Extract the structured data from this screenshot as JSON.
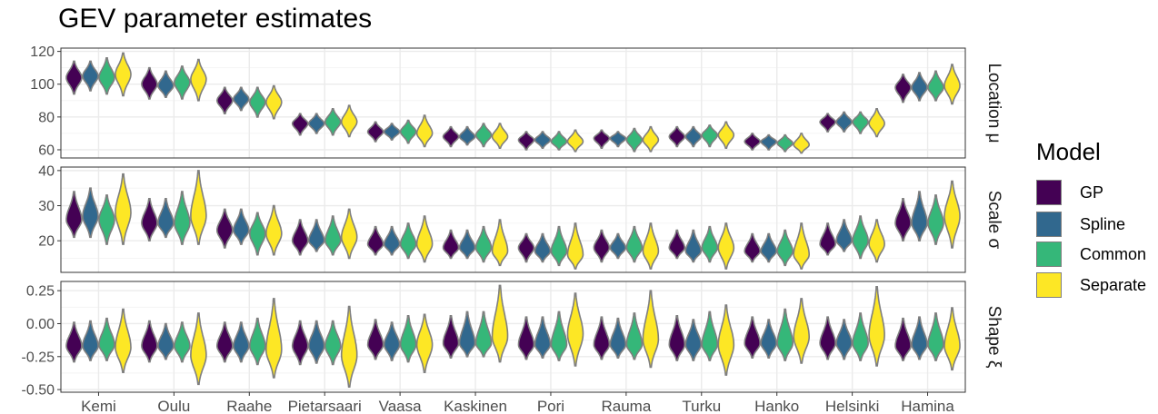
{
  "title": "GEV parameter estimates",
  "legend": {
    "title": "Model",
    "items": [
      {
        "label": "GP",
        "color": "#440154"
      },
      {
        "label": "Spline",
        "color": "#31688E"
      },
      {
        "label": "Common",
        "color": "#35B779"
      },
      {
        "label": "Separate",
        "color": "#FDE725"
      }
    ]
  },
  "chart_data": {
    "type": "violin",
    "categories": [
      "Kemi",
      "Oulu",
      "Raahe",
      "Pietarsaari",
      "Vaasa",
      "Kaskinen",
      "Pori",
      "Rauma",
      "Turku",
      "Hanko",
      "Helsinki",
      "Hamina"
    ],
    "series_names": [
      "GP",
      "Spline",
      "Common",
      "Separate"
    ],
    "panels": [
      {
        "strip_label": "Location μ",
        "ylim": [
          55,
          122
        ],
        "yticks": [
          60,
          80,
          100,
          120
        ],
        "tick_labels": [
          "60",
          "80",
          "100",
          "120"
        ],
        "median": [
          [
            104,
            105,
            104,
            106
          ],
          [
            100,
            99,
            101,
            103
          ],
          [
            90,
            91,
            89,
            89
          ],
          [
            76,
            76,
            77,
            77
          ],
          [
            71,
            71,
            71,
            70
          ],
          [
            68,
            68,
            69,
            68
          ],
          [
            66,
            66,
            65,
            65
          ],
          [
            67,
            67,
            66,
            66
          ],
          [
            68,
            68,
            69,
            69
          ],
          [
            65,
            65,
            64,
            63
          ],
          [
            77,
            77,
            77,
            76
          ],
          [
            98,
            98,
            98,
            99
          ]
        ],
        "min": [
          [
            94,
            96,
            94,
            93
          ],
          [
            91,
            92,
            91,
            90
          ],
          [
            82,
            84,
            80,
            79
          ],
          [
            69,
            70,
            69,
            68
          ],
          [
            65,
            66,
            64,
            62
          ],
          [
            62,
            63,
            62,
            61
          ],
          [
            60,
            61,
            60,
            59
          ],
          [
            61,
            62,
            59,
            59
          ],
          [
            62,
            62,
            62,
            61
          ],
          [
            60,
            60,
            59,
            58
          ],
          [
            71,
            71,
            70,
            68
          ],
          [
            89,
            90,
            90,
            88
          ]
        ],
        "max": [
          [
            114,
            114,
            116,
            119
          ],
          [
            110,
            108,
            111,
            115
          ],
          [
            98,
            98,
            98,
            99
          ],
          [
            82,
            82,
            85,
            87
          ],
          [
            77,
            76,
            78,
            81
          ],
          [
            74,
            74,
            76,
            76
          ],
          [
            71,
            71,
            71,
            72
          ],
          [
            72,
            71,
            73,
            74
          ],
          [
            74,
            74,
            75,
            77
          ],
          [
            70,
            69,
            69,
            70
          ],
          [
            82,
            83,
            83,
            85
          ],
          [
            106,
            107,
            108,
            112
          ]
        ]
      },
      {
        "strip_label": "Scale σ",
        "ylim": [
          11,
          41
        ],
        "yticks": [
          20,
          30,
          40
        ],
        "tick_labels": [
          "20",
          "30",
          "40"
        ],
        "median": [
          [
            26,
            27,
            26,
            28
          ],
          [
            25,
            25,
            25,
            27
          ],
          [
            23,
            23,
            22,
            22
          ],
          [
            20,
            20,
            20,
            21
          ],
          [
            19,
            19,
            19,
            19
          ],
          [
            18,
            18,
            18,
            17
          ],
          [
            18,
            17,
            17,
            16
          ],
          [
            18,
            18,
            18,
            17
          ],
          [
            18,
            17,
            18,
            18
          ],
          [
            17,
            17,
            17,
            16
          ],
          [
            19,
            20,
            20,
            19
          ],
          [
            25,
            25,
            25,
            27
          ]
        ],
        "min": [
          [
            21,
            21,
            19,
            19
          ],
          [
            20,
            21,
            19,
            19
          ],
          [
            18,
            19,
            16,
            16
          ],
          [
            16,
            17,
            16,
            15
          ],
          [
            16,
            16,
            15,
            14
          ],
          [
            15,
            15,
            14,
            13
          ],
          [
            14,
            14,
            13,
            12
          ],
          [
            14,
            15,
            14,
            12
          ],
          [
            15,
            14,
            14,
            12
          ],
          [
            14,
            14,
            13,
            12
          ],
          [
            16,
            17,
            15,
            14
          ],
          [
            20,
            20,
            19,
            18
          ]
        ],
        "max": [
          [
            34,
            35,
            33,
            39
          ],
          [
            32,
            32,
            34,
            40
          ],
          [
            29,
            29,
            28,
            30
          ],
          [
            26,
            26,
            27,
            29
          ],
          [
            24,
            24,
            25,
            27
          ],
          [
            23,
            23,
            24,
            26
          ],
          [
            22,
            22,
            24,
            25
          ],
          [
            23,
            22,
            24,
            25
          ],
          [
            23,
            23,
            24,
            25
          ],
          [
            22,
            22,
            23,
            25
          ],
          [
            25,
            26,
            27,
            26
          ],
          [
            32,
            34,
            33,
            37
          ]
        ]
      },
      {
        "strip_label": "Shape ξ",
        "ylim": [
          -0.52,
          0.32
        ],
        "yticks": [
          -0.5,
          -0.25,
          0.0,
          0.25
        ],
        "tick_labels": [
          "-0.50",
          "-0.25",
          "0.00",
          "0.25"
        ],
        "median": [
          [
            -0.17,
            -0.17,
            -0.16,
            -0.18
          ],
          [
            -0.17,
            -0.17,
            -0.17,
            -0.24
          ],
          [
            -0.17,
            -0.17,
            -0.17,
            -0.2
          ],
          [
            -0.17,
            -0.17,
            -0.17,
            -0.24
          ],
          [
            -0.16,
            -0.16,
            -0.16,
            -0.16
          ],
          [
            -0.15,
            -0.15,
            -0.15,
            -0.1
          ],
          [
            -0.16,
            -0.16,
            -0.16,
            -0.08
          ],
          [
            -0.16,
            -0.16,
            -0.16,
            -0.12
          ],
          [
            -0.16,
            -0.16,
            -0.16,
            -0.16
          ],
          [
            -0.15,
            -0.15,
            -0.15,
            -0.1
          ],
          [
            -0.15,
            -0.15,
            -0.15,
            -0.09
          ],
          [
            -0.17,
            -0.16,
            -0.16,
            -0.17
          ]
        ],
        "min": [
          [
            -0.29,
            -0.28,
            -0.28,
            -0.37
          ],
          [
            -0.29,
            -0.27,
            -0.29,
            -0.46
          ],
          [
            -0.29,
            -0.29,
            -0.31,
            -0.41
          ],
          [
            -0.31,
            -0.3,
            -0.31,
            -0.48
          ],
          [
            -0.27,
            -0.28,
            -0.29,
            -0.37
          ],
          [
            -0.26,
            -0.25,
            -0.25,
            -0.29
          ],
          [
            -0.27,
            -0.26,
            -0.28,
            -0.32
          ],
          [
            -0.27,
            -0.26,
            -0.27,
            -0.33
          ],
          [
            -0.28,
            -0.28,
            -0.28,
            -0.39
          ],
          [
            -0.26,
            -0.26,
            -0.28,
            -0.3
          ],
          [
            -0.27,
            -0.27,
            -0.28,
            -0.32
          ],
          [
            -0.28,
            -0.27,
            -0.28,
            -0.35
          ]
        ],
        "max": [
          [
            0.01,
            0.02,
            0.04,
            0.11
          ],
          [
            0.02,
            0.0,
            0.01,
            0.08
          ],
          [
            0.01,
            0.01,
            0.04,
            0.19
          ],
          [
            0.02,
            0.02,
            0.02,
            0.13
          ],
          [
            0.03,
            0.01,
            0.06,
            0.07
          ],
          [
            0.06,
            0.09,
            0.09,
            0.29
          ],
          [
            0.05,
            0.05,
            0.09,
            0.23
          ],
          [
            0.05,
            0.04,
            0.08,
            0.25
          ],
          [
            0.06,
            0.03,
            0.09,
            0.14
          ],
          [
            0.05,
            0.03,
            0.11,
            0.19
          ],
          [
            0.05,
            0.03,
            0.08,
            0.28
          ],
          [
            0.04,
            0.05,
            0.08,
            0.12
          ]
        ]
      }
    ],
    "grid": true,
    "legend_position": "right"
  }
}
